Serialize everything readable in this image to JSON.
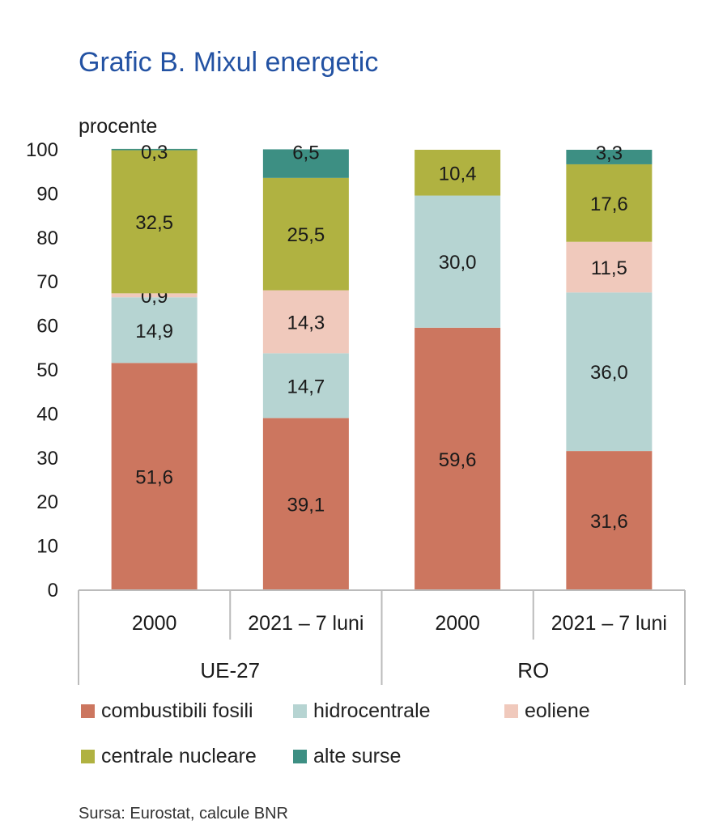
{
  "title": "Grafic B. Mixul energetic",
  "source": "Sursa: Eurostat, calcule BNR",
  "colors": {
    "combustibili": "#cc765f",
    "hidro": "#b6d4d2",
    "eoliene": "#f0c9bc",
    "nucleare": "#b0b241",
    "alte": "#3d8f83"
  },
  "chart_data": {
    "type": "bar",
    "stacked": true,
    "ylabel": "procente",
    "ylim": [
      0,
      100
    ],
    "yticks": [
      0,
      10,
      20,
      30,
      40,
      50,
      60,
      70,
      80,
      90,
      100
    ],
    "groups": [
      "UE-27",
      "RO"
    ],
    "categories": [
      "2000",
      "2021 – 7 luni",
      "2000",
      "2021 – 7 luni"
    ],
    "category_groups": [
      "UE-27",
      "UE-27",
      "RO",
      "RO"
    ],
    "series": [
      {
        "name": "combustibili fosili",
        "values": [
          51.6,
          39.1,
          59.6,
          31.6
        ],
        "labels": [
          "51,6",
          "39,1",
          "59,6",
          "31,6"
        ]
      },
      {
        "name": "hidrocentrale",
        "values": [
          14.9,
          14.7,
          30.0,
          36.0
        ],
        "labels": [
          "14,9",
          "14,7",
          "30,0",
          "36,0"
        ]
      },
      {
        "name": "eoliene",
        "values": [
          0.9,
          14.3,
          0,
          11.5
        ],
        "labels": [
          "0,9",
          "14,3",
          "",
          "11,5"
        ]
      },
      {
        "name": "centrale nucleare",
        "values": [
          32.5,
          25.5,
          10.4,
          17.6
        ],
        "labels": [
          "32,5",
          "25,5",
          "10,4",
          "17,6"
        ]
      },
      {
        "name": "alte surse",
        "values": [
          0.3,
          6.5,
          0,
          3.3
        ],
        "labels": [
          "0,3",
          "6,5",
          "",
          "3,3"
        ]
      }
    ],
    "legend": [
      "combustibili fosili",
      "hidrocentrale",
      "eoliene",
      "centrale nucleare",
      "alte surse"
    ],
    "legend_position": "bottom",
    "grid": false
  }
}
